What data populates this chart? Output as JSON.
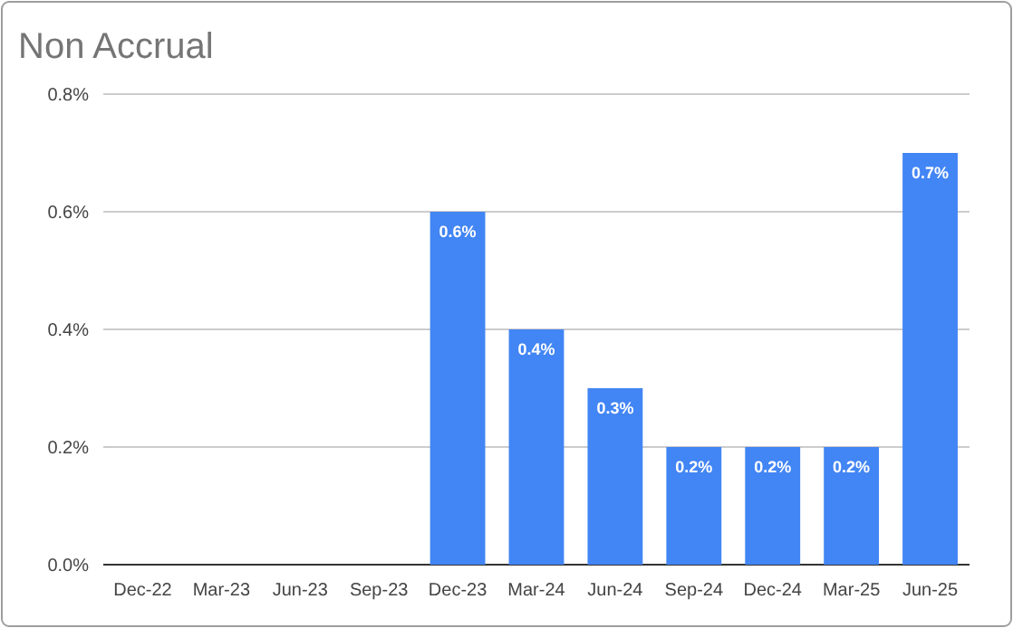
{
  "chart_data": {
    "type": "bar",
    "title": "Non Accrual",
    "categories": [
      "Dec-22",
      "Mar-23",
      "Jun-23",
      "Sep-23",
      "Dec-23",
      "Mar-24",
      "Jun-24",
      "Sep-24",
      "Dec-24",
      "Mar-25",
      "Jun-25"
    ],
    "values": [
      0,
      0,
      0,
      0,
      0.6,
      0.4,
      0.3,
      0.2,
      0.2,
      0.2,
      0.7
    ],
    "value_labels": [
      null,
      null,
      null,
      null,
      "0.6%",
      "0.4%",
      "0.3%",
      "0.2%",
      "0.2%",
      "0.2%",
      "0.7%"
    ],
    "color": "#4285f4",
    "ylim": [
      0,
      0.8
    ],
    "yticks": [
      {
        "value": 0,
        "label": "0.0%"
      },
      {
        "value": 0.2,
        "label": "0.2%"
      },
      {
        "value": 0.4,
        "label": "0.4%"
      },
      {
        "value": 0.6,
        "label": "0.6%"
      },
      {
        "value": 0.8,
        "label": "0.8%"
      }
    ],
    "grid": "y"
  }
}
